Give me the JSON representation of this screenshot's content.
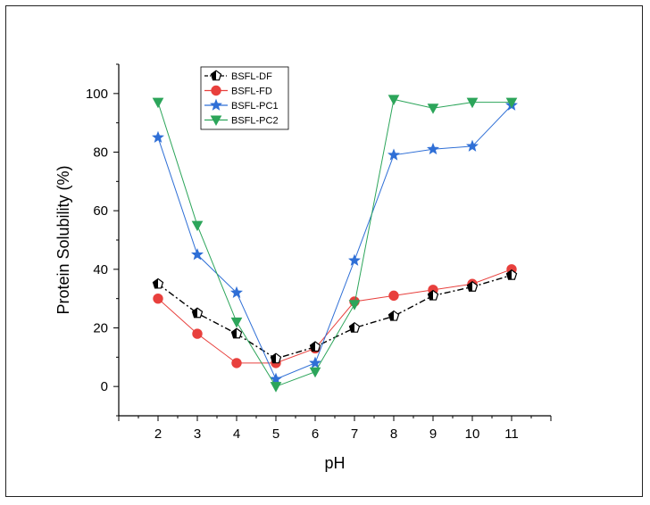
{
  "chart_data": {
    "type": "line",
    "title": "",
    "xlabel": "pH",
    "ylabel": "Protein Solubility (%)",
    "x": [
      2,
      3,
      4,
      5,
      6,
      7,
      8,
      9,
      10,
      11
    ],
    "xlim": [
      1,
      12
    ],
    "ylim": [
      -10,
      110
    ],
    "x_ticks": [
      2,
      3,
      4,
      5,
      6,
      7,
      8,
      9,
      10,
      11
    ],
    "y_ticks": [
      0,
      20,
      40,
      60,
      80,
      100
    ],
    "grid": false,
    "legend_position": "top-left",
    "series": [
      {
        "name": "BSFL-DF",
        "color": "#000000",
        "marker": "pentagon",
        "line_style": "dash-dot",
        "values": [
          35,
          25,
          18,
          9.5,
          13.5,
          20,
          24,
          31,
          34,
          38
        ]
      },
      {
        "name": "BSFL-FD",
        "color": "#e8403d",
        "marker": "circle",
        "line_style": "solid",
        "values": [
          30,
          18,
          8,
          8,
          13,
          29,
          31,
          33,
          35,
          40
        ]
      },
      {
        "name": "BSFL-PC1",
        "color": "#2f6fd6",
        "marker": "star",
        "line_style": "solid",
        "values": [
          85,
          45,
          32,
          2.5,
          8,
          43,
          79,
          81,
          82,
          96
        ]
      },
      {
        "name": "BSFL-PC2",
        "color": "#2ca55a",
        "marker": "triangle-down",
        "line_style": "solid",
        "values": [
          97,
          55,
          22,
          0,
          5,
          28,
          98,
          95,
          97,
          97
        ]
      }
    ]
  }
}
